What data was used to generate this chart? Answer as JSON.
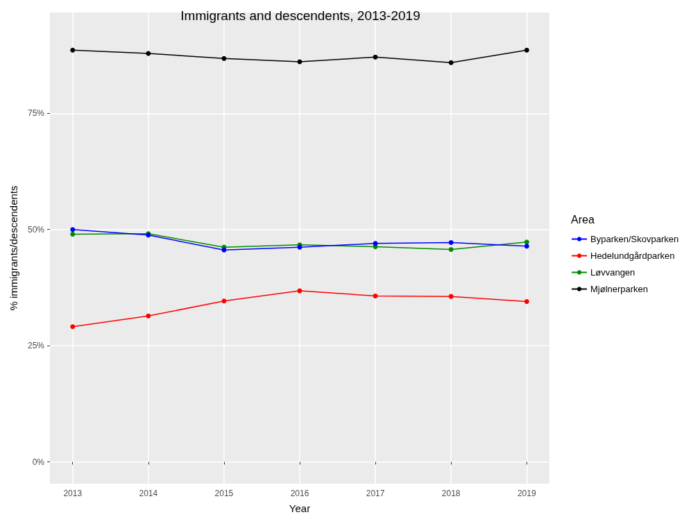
{
  "chart_data": {
    "type": "line",
    "title": "Immigrants and descendents, 2013-2019",
    "xlabel": "Year",
    "ylabel": "% immigrants/descendents",
    "legend_title": "Area",
    "x": [
      2013,
      2014,
      2015,
      2016,
      2017,
      2018,
      2019
    ],
    "series": [
      {
        "name": "Byparken/Skovparken",
        "color": "#0000ff",
        "values": [
          50.0,
          48.8,
          45.6,
          46.2,
          47.0,
          47.2,
          46.4
        ]
      },
      {
        "name": "Hedelundgårdparken",
        "color": "#ff0000",
        "values": [
          29.1,
          31.4,
          34.6,
          36.8,
          35.7,
          35.6,
          34.5
        ]
      },
      {
        "name": "Løvvangen",
        "color": "#008b00",
        "values": [
          49.0,
          49.1,
          46.2,
          46.7,
          46.3,
          45.7,
          47.3
        ]
      },
      {
        "name": "Mjølnerparken",
        "color": "#000000",
        "values": [
          88.6,
          87.9,
          86.8,
          86.1,
          87.1,
          85.9,
          88.6
        ]
      }
    ],
    "xlim": [
      2012.7,
      2019.3
    ],
    "xticks": [
      2013,
      2014,
      2015,
      2016,
      2017,
      2018,
      2019
    ],
    "ylim": [
      -4.7,
      96.7
    ],
    "yticks": [
      {
        "value": 0,
        "label": "0%"
      },
      {
        "value": 25,
        "label": "25%"
      },
      {
        "value": 50,
        "label": "50%"
      },
      {
        "value": 75,
        "label": "75%"
      }
    ],
    "grid": true,
    "legend": "right",
    "marker": "circle",
    "line_style": "solid"
  }
}
